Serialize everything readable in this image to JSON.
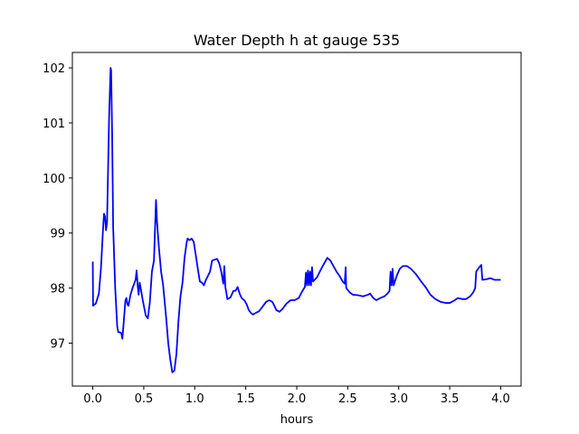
{
  "chart_data": {
    "type": "line",
    "title": "Water Depth h at gauge 535",
    "xlabel": "hours",
    "ylabel": "",
    "xlim": [
      -0.2,
      4.2
    ],
    "ylim": [
      96.22,
      102.28
    ],
    "x_ticks": [
      0.0,
      0.5,
      1.0,
      1.5,
      2.0,
      2.5,
      3.0,
      3.5,
      4.0
    ],
    "x_tick_labels": [
      "0.0",
      "0.5",
      "1.0",
      "1.5",
      "2.0",
      "2.5",
      "3.0",
      "3.5",
      "4.0"
    ],
    "y_ticks": [
      97,
      98,
      99,
      100,
      101,
      102
    ],
    "y_tick_labels": [
      "97",
      "98",
      "99",
      "100",
      "101",
      "102"
    ],
    "grid": false,
    "legend": "none",
    "series": [
      {
        "color": "#0000ff",
        "points": [
          [
            0.0,
            98.48
          ],
          [
            0.003,
            97.68
          ],
          [
            0.03,
            97.72
          ],
          [
            0.06,
            97.9
          ],
          [
            0.08,
            98.35
          ],
          [
            0.1,
            99.05
          ],
          [
            0.11,
            99.35
          ],
          [
            0.12,
            99.3
          ],
          [
            0.13,
            99.05
          ],
          [
            0.14,
            99.2
          ],
          [
            0.16,
            101.1
          ],
          [
            0.175,
            102.0
          ],
          [
            0.18,
            101.95
          ],
          [
            0.19,
            100.8
          ],
          [
            0.2,
            99.1
          ],
          [
            0.22,
            98.0
          ],
          [
            0.24,
            97.3
          ],
          [
            0.25,
            97.2
          ],
          [
            0.26,
            97.2
          ],
          [
            0.28,
            97.18
          ],
          [
            0.29,
            97.08
          ],
          [
            0.3,
            97.3
          ],
          [
            0.32,
            97.78
          ],
          [
            0.33,
            97.82
          ],
          [
            0.34,
            97.7
          ],
          [
            0.35,
            97.68
          ],
          [
            0.37,
            97.88
          ],
          [
            0.39,
            98.0
          ],
          [
            0.42,
            98.15
          ],
          [
            0.43,
            98.32
          ],
          [
            0.44,
            98.05
          ],
          [
            0.45,
            97.88
          ],
          [
            0.46,
            98.1
          ],
          [
            0.47,
            98.0
          ],
          [
            0.49,
            97.78
          ],
          [
            0.52,
            97.5
          ],
          [
            0.54,
            97.45
          ],
          [
            0.56,
            97.75
          ],
          [
            0.58,
            98.3
          ],
          [
            0.6,
            98.5
          ],
          [
            0.62,
            99.6
          ],
          [
            0.63,
            99.2
          ],
          [
            0.65,
            98.7
          ],
          [
            0.67,
            98.3
          ],
          [
            0.69,
            98.05
          ],
          [
            0.72,
            97.45
          ],
          [
            0.74,
            97.0
          ],
          [
            0.76,
            96.7
          ],
          [
            0.78,
            96.47
          ],
          [
            0.8,
            96.5
          ],
          [
            0.82,
            96.8
          ],
          [
            0.84,
            97.4
          ],
          [
            0.86,
            97.85
          ],
          [
            0.88,
            98.1
          ],
          [
            0.9,
            98.55
          ],
          [
            0.92,
            98.82
          ],
          [
            0.93,
            98.9
          ],
          [
            0.95,
            98.87
          ],
          [
            0.97,
            98.9
          ],
          [
            0.99,
            98.84
          ],
          [
            1.01,
            98.6
          ],
          [
            1.03,
            98.35
          ],
          [
            1.05,
            98.12
          ],
          [
            1.07,
            98.1
          ],
          [
            1.09,
            98.05
          ],
          [
            1.11,
            98.15
          ],
          [
            1.15,
            98.3
          ],
          [
            1.17,
            98.5
          ],
          [
            1.2,
            98.52
          ],
          [
            1.22,
            98.53
          ],
          [
            1.24,
            98.45
          ],
          [
            1.26,
            98.3
          ],
          [
            1.28,
            98.08
          ],
          [
            1.29,
            98.4
          ],
          [
            1.3,
            98.02
          ],
          [
            1.32,
            97.8
          ],
          [
            1.35,
            97.83
          ],
          [
            1.38,
            97.95
          ],
          [
            1.4,
            97.95
          ],
          [
            1.42,
            98.02
          ],
          [
            1.44,
            97.9
          ],
          [
            1.46,
            97.82
          ],
          [
            1.49,
            97.77
          ],
          [
            1.51,
            97.7
          ],
          [
            1.53,
            97.6
          ],
          [
            1.55,
            97.55
          ],
          [
            1.57,
            97.52
          ],
          [
            1.6,
            97.55
          ],
          [
            1.63,
            97.58
          ],
          [
            1.66,
            97.65
          ],
          [
            1.7,
            97.75
          ],
          [
            1.73,
            97.78
          ],
          [
            1.76,
            97.75
          ],
          [
            1.78,
            97.68
          ],
          [
            1.8,
            97.6
          ],
          [
            1.83,
            97.57
          ],
          [
            1.86,
            97.62
          ],
          [
            1.9,
            97.72
          ],
          [
            1.94,
            97.78
          ],
          [
            1.98,
            97.78
          ],
          [
            2.02,
            97.82
          ],
          [
            2.05,
            97.93
          ],
          [
            2.08,
            98.02
          ],
          [
            2.09,
            98.28
          ],
          [
            2.1,
            98.05
          ],
          [
            2.11,
            98.32
          ],
          [
            2.12,
            98.05
          ],
          [
            2.13,
            98.3
          ],
          [
            2.14,
            98.05
          ],
          [
            2.15,
            98.38
          ],
          [
            2.16,
            98.12
          ],
          [
            2.2,
            98.2
          ],
          [
            2.24,
            98.35
          ],
          [
            2.27,
            98.45
          ],
          [
            2.3,
            98.55
          ],
          [
            2.33,
            98.5
          ],
          [
            2.36,
            98.4
          ],
          [
            2.39,
            98.3
          ],
          [
            2.42,
            98.22
          ],
          [
            2.45,
            98.12
          ],
          [
            2.47,
            98.08
          ],
          [
            2.48,
            98.38
          ],
          [
            2.485,
            98.0
          ],
          [
            2.52,
            97.92
          ],
          [
            2.55,
            97.88
          ],
          [
            2.6,
            97.87
          ],
          [
            2.65,
            97.85
          ],
          [
            2.7,
            97.88
          ],
          [
            2.72,
            97.9
          ],
          [
            2.75,
            97.82
          ],
          [
            2.78,
            97.78
          ],
          [
            2.82,
            97.82
          ],
          [
            2.86,
            97.85
          ],
          [
            2.89,
            97.9
          ],
          [
            2.91,
            97.95
          ],
          [
            2.92,
            98.3
          ],
          [
            2.93,
            98.05
          ],
          [
            2.94,
            98.35
          ],
          [
            2.95,
            98.05
          ],
          [
            2.98,
            98.22
          ],
          [
            3.01,
            98.35
          ],
          [
            3.04,
            98.4
          ],
          [
            3.08,
            98.4
          ],
          [
            3.12,
            98.35
          ],
          [
            3.17,
            98.25
          ],
          [
            3.22,
            98.12
          ],
          [
            3.27,
            98.0
          ],
          [
            3.31,
            97.88
          ],
          [
            3.36,
            97.8
          ],
          [
            3.41,
            97.75
          ],
          [
            3.46,
            97.73
          ],
          [
            3.5,
            97.73
          ],
          [
            3.55,
            97.78
          ],
          [
            3.58,
            97.82
          ],
          [
            3.62,
            97.8
          ],
          [
            3.66,
            97.8
          ],
          [
            3.7,
            97.85
          ],
          [
            3.73,
            97.92
          ],
          [
            3.75,
            98.0
          ],
          [
            3.76,
            98.3
          ],
          [
            3.79,
            98.38
          ],
          [
            3.81,
            98.42
          ],
          [
            3.82,
            98.15
          ],
          [
            3.86,
            98.16
          ],
          [
            3.9,
            98.18
          ],
          [
            3.94,
            98.15
          ],
          [
            3.97,
            98.15
          ],
          [
            4.0,
            98.15
          ]
        ]
      }
    ]
  }
}
